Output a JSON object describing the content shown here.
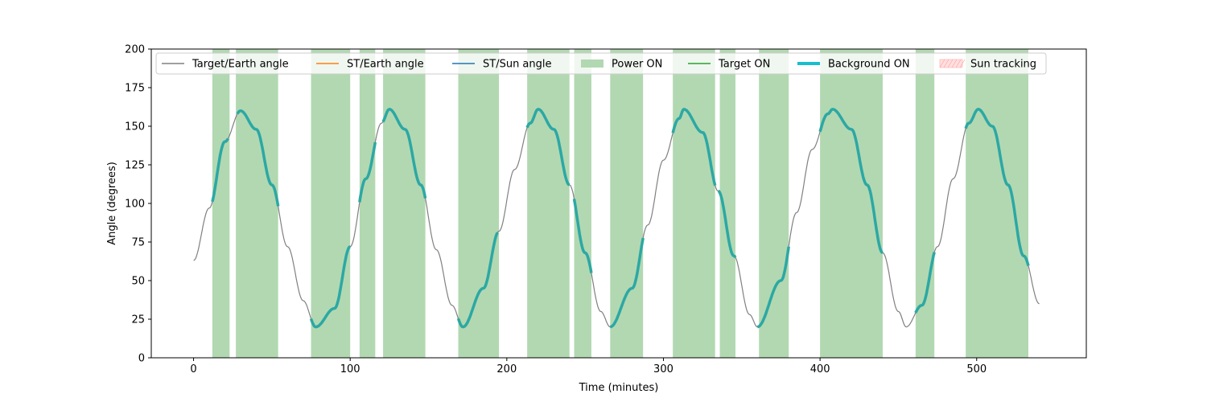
{
  "chart_data": {
    "type": "line",
    "xlabel": "Time (minutes)",
    "ylabel": "Angle (degrees)",
    "xlim": [
      -27,
      570
    ],
    "ylim": [
      0,
      200
    ],
    "xticks": [
      0,
      100,
      200,
      300,
      400,
      500
    ],
    "yticks": [
      0,
      25,
      50,
      75,
      100,
      125,
      150,
      175,
      200
    ],
    "grid": false,
    "legend_position": "top",
    "legend": [
      {
        "label": "Target/Earth angle",
        "kind": "line",
        "color": "#808080"
      },
      {
        "label": "ST/Earth angle",
        "kind": "line",
        "color": "#ff7f0e"
      },
      {
        "label": "ST/Sun angle",
        "kind": "line",
        "color": "#1f77b4"
      },
      {
        "label": "Power ON",
        "kind": "patch",
        "color": "#b2d8b2"
      },
      {
        "label": "Target ON",
        "kind": "line",
        "color": "#2ca02c"
      },
      {
        "label": "Background ON",
        "kind": "thickline",
        "color": "#17becf"
      },
      {
        "label": "Sun tracking",
        "kind": "hatch",
        "color": "#ffcccc"
      }
    ],
    "series": [
      {
        "name": "Target/Earth angle",
        "color": "#808080",
        "x": [
          0,
          10,
          20,
          30,
          40,
          50,
          60,
          70,
          78,
          90,
          100,
          110,
          120,
          125,
          135,
          145,
          155,
          165,
          172,
          185,
          195,
          205,
          215,
          220,
          230,
          240,
          250,
          260,
          266,
          280,
          290,
          300,
          310,
          313,
          325,
          335,
          345,
          355,
          360,
          375,
          385,
          395,
          405,
          408,
          420,
          430,
          440,
          450,
          455,
          465,
          475,
          485,
          495,
          501,
          510,
          520,
          530,
          540
        ],
        "y": [
          63,
          97,
          140,
          160,
          148,
          112,
          72,
          37,
          20,
          32,
          72,
          116,
          152,
          161,
          148,
          112,
          70,
          34,
          20,
          45,
          82,
          122,
          152,
          161,
          148,
          112,
          68,
          30,
          20,
          45,
          86,
          128,
          155,
          161,
          146,
          108,
          66,
          28,
          20,
          50,
          94,
          135,
          158,
          161,
          148,
          112,
          68,
          30,
          20,
          34,
          72,
          116,
          152,
          161,
          150,
          112,
          66,
          35
        ]
      }
    ],
    "background_on_segments": [
      [
        12,
        22
      ],
      [
        28,
        54
      ],
      [
        75,
        100
      ],
      [
        106,
        116
      ],
      [
        121,
        148
      ],
      [
        169,
        194
      ],
      [
        213,
        240
      ],
      [
        243,
        254
      ],
      [
        266,
        287
      ],
      [
        306,
        333
      ],
      [
        335,
        346
      ],
      [
        360,
        380
      ],
      [
        400,
        440
      ],
      [
        461,
        473
      ],
      [
        493,
        533
      ]
    ],
    "power_on_intervals": [
      [
        12,
        23
      ],
      [
        27,
        54
      ],
      [
        75,
        100
      ],
      [
        106,
        116
      ],
      [
        121,
        148
      ],
      [
        169,
        195
      ],
      [
        213,
        240
      ],
      [
        243,
        254
      ],
      [
        266,
        287
      ],
      [
        306,
        333
      ],
      [
        336,
        346
      ],
      [
        361,
        380
      ],
      [
        400,
        440
      ],
      [
        461,
        473
      ],
      [
        493,
        533
      ]
    ]
  }
}
